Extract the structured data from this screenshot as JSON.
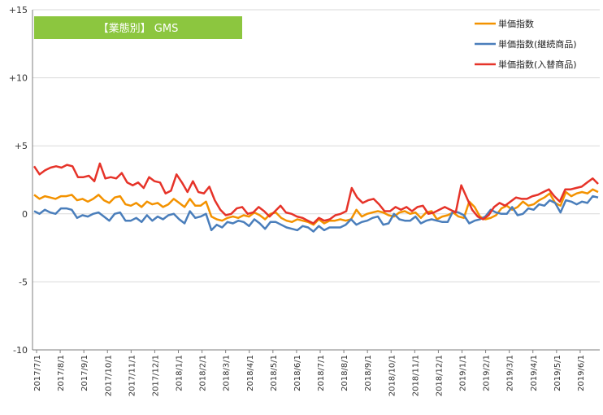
{
  "chart_data": {
    "type": "line",
    "badge": "【業態別】 GMS",
    "ylim": [
      -10,
      15
    ],
    "ytick_labels": [
      "+15",
      "+10",
      "+5",
      "0",
      "-5",
      "-10"
    ],
    "ytick_values": [
      15,
      10,
      5,
      0,
      -5,
      -10
    ],
    "grid": true,
    "legend_position": "top-right",
    "x_tick_labels": [
      "2017/7/1",
      "2017/8/1",
      "2017/9/1",
      "2017/10/1",
      "2017/11/1",
      "2017/12/1",
      "2018/1/1",
      "2018/2/1",
      "2018/3/1",
      "2018/4/1",
      "2018/5/1",
      "2018/6/1",
      "2018/7/1",
      "2018/8/1",
      "2018/9/1",
      "2018/10/1",
      "2018/11/1",
      "2018/12/1",
      "2019/1/1",
      "2019/2/1",
      "2019/3/1",
      "2019/4/1",
      "2019/5/1",
      "2019/6/1"
    ],
    "series": [
      {
        "name": "単価指数",
        "color": "#f39200",
        "values": [
          1.4,
          1.1,
          1.3,
          1.2,
          1.1,
          1.3,
          1.3,
          1.4,
          1.0,
          1.1,
          0.9,
          1.1,
          1.4,
          1.0,
          0.8,
          1.2,
          1.3,
          0.7,
          0.6,
          0.8,
          0.5,
          0.9,
          0.7,
          0.8,
          0.5,
          0.7,
          1.1,
          0.8,
          0.5,
          1.1,
          0.6,
          0.6,
          0.9,
          -0.2,
          -0.4,
          -0.5,
          -0.3,
          -0.2,
          -0.3,
          -0.1,
          -0.2,
          0.1,
          -0.1,
          -0.4,
          0.0,
          0.1,
          -0.3,
          -0.5,
          -0.6,
          -0.4,
          -0.5,
          -0.6,
          -0.8,
          -0.4,
          -0.7,
          -0.5,
          -0.5,
          -0.4,
          -0.5,
          -0.4,
          0.3,
          -0.2,
          0.0,
          0.1,
          0.2,
          0.1,
          -0.1,
          -0.2,
          0.1,
          0.2,
          0.0,
          0.1,
          -0.3,
          0.1,
          0.2,
          -0.4,
          -0.2,
          -0.1,
          0.1,
          -0.2,
          -0.3,
          0.9,
          0.5,
          -0.2,
          -0.4,
          -0.3,
          -0.1,
          0.4,
          0.6,
          0.3,
          0.5,
          0.9,
          0.6,
          0.7,
          1.0,
          1.2,
          1.5,
          0.8,
          0.6,
          1.6,
          1.3,
          1.5,
          1.6,
          1.5,
          1.8,
          1.6
        ],
        "dates": []
      },
      {
        "name": "単価指数(継続商品)",
        "color": "#4a7ebb",
        "values": [
          0.2,
          0.0,
          0.3,
          0.1,
          0.0,
          0.4,
          0.4,
          0.3,
          -0.3,
          -0.1,
          -0.2,
          0.0,
          0.1,
          -0.2,
          -0.5,
          0.0,
          0.1,
          -0.5,
          -0.5,
          -0.3,
          -0.6,
          -0.1,
          -0.5,
          -0.2,
          -0.4,
          -0.1,
          0.0,
          -0.4,
          -0.7,
          0.2,
          -0.3,
          -0.2,
          0.0,
          -1.2,
          -0.8,
          -1.0,
          -0.6,
          -0.7,
          -0.5,
          -0.6,
          -0.9,
          -0.4,
          -0.7,
          -1.1,
          -0.6,
          -0.6,
          -0.8,
          -1.0,
          -1.1,
          -1.2,
          -0.9,
          -1.0,
          -1.3,
          -0.9,
          -1.2,
          -1.0,
          -1.0,
          -1.0,
          -0.8,
          -0.4,
          -0.8,
          -0.6,
          -0.5,
          -0.3,
          -0.2,
          -0.8,
          -0.7,
          0.0,
          -0.4,
          -0.5,
          -0.5,
          -0.2,
          -0.7,
          -0.5,
          -0.4,
          -0.5,
          -0.6,
          -0.6,
          0.2,
          0.1,
          -0.1,
          -0.7,
          -0.5,
          -0.4,
          -0.2,
          0.3,
          0.1,
          0.0,
          0.0,
          0.5,
          -0.1,
          0.0,
          0.4,
          0.3,
          0.7,
          0.6,
          1.0,
          0.8,
          0.1,
          1.0,
          0.9,
          0.7,
          0.9,
          0.8,
          1.3,
          1.2
        ],
        "dates": []
      },
      {
        "name": "単価指数(入替商品)",
        "color": "#e63329",
        "values": [
          3.5,
          2.9,
          3.2,
          3.4,
          3.5,
          3.4,
          3.6,
          3.5,
          2.7,
          2.7,
          2.8,
          2.4,
          3.7,
          2.6,
          2.7,
          2.6,
          3.0,
          2.3,
          2.1,
          2.3,
          1.9,
          2.7,
          2.4,
          2.3,
          1.5,
          1.7,
          2.9,
          2.3,
          1.6,
          2.4,
          1.6,
          1.5,
          2.0,
          1.0,
          0.3,
          -0.1,
          0.0,
          0.4,
          0.5,
          0.0,
          0.1,
          0.5,
          0.2,
          -0.2,
          0.2,
          0.6,
          0.1,
          0.0,
          -0.2,
          -0.3,
          -0.5,
          -0.7,
          -0.3,
          -0.5,
          -0.4,
          -0.1,
          0.0,
          0.2,
          1.9,
          1.2,
          0.8,
          1.0,
          1.1,
          0.7,
          0.2,
          0.2,
          0.5,
          0.3,
          0.5,
          0.2,
          0.5,
          0.6,
          0.0,
          0.1,
          0.3,
          0.5,
          0.3,
          0.1,
          2.1,
          1.2,
          0.3,
          -0.2,
          -0.4,
          -0.1,
          0.5,
          0.8,
          0.6,
          0.9,
          1.2,
          1.1,
          1.1,
          1.3,
          1.4,
          1.6,
          1.8,
          1.3,
          0.9,
          1.8,
          1.8,
          1.9,
          2.0,
          2.3,
          2.6,
          2.2
        ],
        "dates": []
      }
    ]
  }
}
